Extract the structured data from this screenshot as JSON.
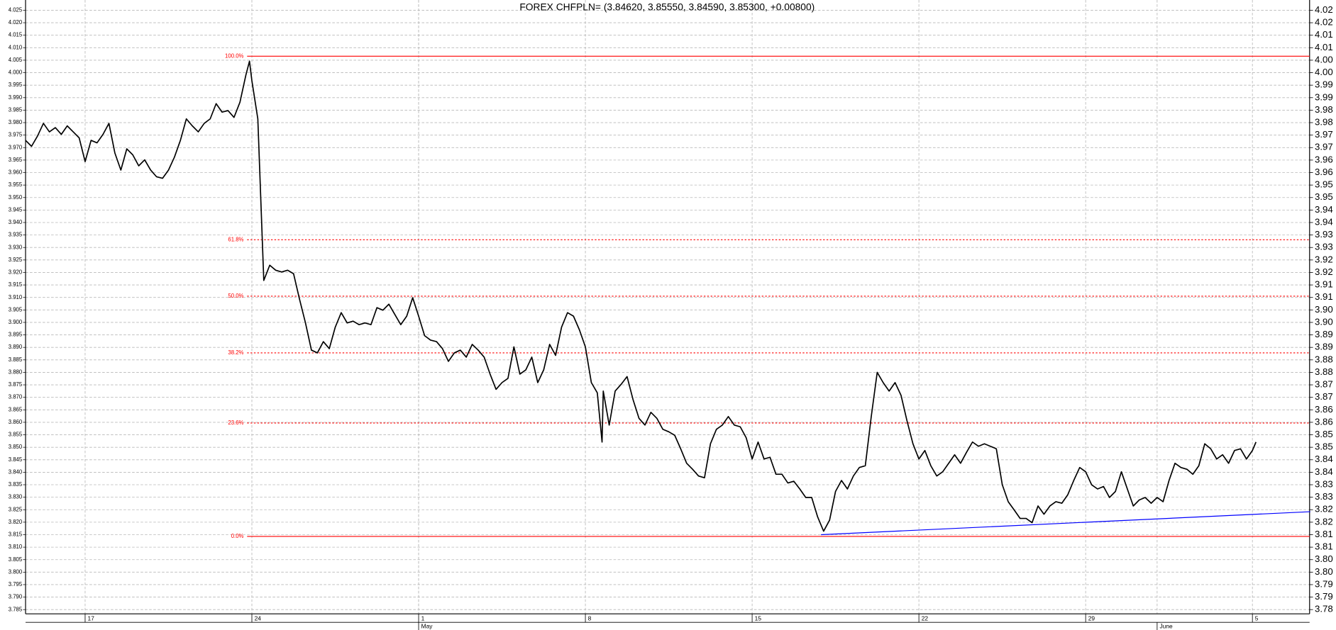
{
  "chart_data": {
    "type": "line",
    "title": "FOREX CHFPLN= (3.84620, 3.85550, 3.84590, 3.85300, +0.00800)",
    "color": "#000000",
    "grid": true,
    "xlim": [
      -2.5,
      51.4
    ],
    "ylim": [
      3.7833,
      4.0291
    ],
    "xticks": [
      {
        "value": 0,
        "label": "17"
      },
      {
        "value": 7,
        "label": "24"
      },
      {
        "value": 14,
        "label": "1"
      },
      {
        "value": 21,
        "label": "8"
      },
      {
        "value": 28,
        "label": "15"
      },
      {
        "value": 35,
        "label": "22"
      },
      {
        "value": 42,
        "label": "29"
      },
      {
        "value": 49,
        "label": "5"
      }
    ],
    "xticks_month": [
      {
        "value": 14,
        "label": "May"
      },
      {
        "value": 45,
        "label": "June"
      }
    ],
    "yticks": [
      4.025,
      {
        "value": 4.02,
        "label": "4.020"
      },
      4.015,
      {
        "value": 4.01,
        "label": "4.010"
      },
      4.005,
      {
        "value": 4.0,
        "label": "4.000"
      },
      3.995,
      {
        "value": 3.99,
        "label": "3.990"
      },
      3.985,
      {
        "value": 3.98,
        "label": "3.980"
      },
      3.975,
      {
        "value": 3.97,
        "label": "3.970"
      },
      3.965,
      {
        "value": 3.96,
        "label": "3.960"
      },
      3.955,
      {
        "value": 3.95,
        "label": "3.950"
      },
      3.945,
      {
        "value": 3.94,
        "label": "3.940"
      },
      3.935,
      {
        "value": 3.93,
        "label": "3.930"
      },
      3.925,
      {
        "value": 3.92,
        "label": "3.920"
      },
      3.915,
      {
        "value": 3.91,
        "label": "3.910"
      },
      3.905,
      {
        "value": 3.9,
        "label": "3.900"
      },
      3.895,
      {
        "value": 3.89,
        "label": "3.890"
      },
      3.885,
      {
        "value": 3.88,
        "label": "3.880"
      },
      3.875,
      {
        "value": 3.87,
        "label": "3.870"
      },
      3.865,
      {
        "value": 3.86,
        "label": "3.860"
      },
      3.855,
      {
        "value": 3.85,
        "label": "3.850"
      },
      3.845,
      {
        "value": 3.84,
        "label": "3.840"
      },
      3.835,
      {
        "value": 3.83,
        "label": "3.830"
      },
      3.825,
      {
        "value": 3.82,
        "label": "3.820"
      },
      3.815,
      {
        "value": 3.81,
        "label": "3.810"
      },
      3.805,
      {
        "value": 3.8,
        "label": "3.800"
      },
      3.795,
      {
        "value": 3.79,
        "label": "3.790"
      },
      3.785
    ],
    "y2ticks": [
      {
        "value": 4.025,
        "label": "4.02"
      },
      4.02,
      {
        "value": 4.015,
        "label": "4.01"
      },
      4.01,
      {
        "value": 4.005,
        "label": "4.00"
      },
      {
        "value": 4.0,
        "label": "4.00"
      },
      {
        "value": 3.995,
        "label": "3.99"
      },
      3.99,
      {
        "value": 3.985,
        "label": "3.98"
      },
      3.98,
      {
        "value": 3.975,
        "label": "3.97"
      },
      3.97,
      {
        "value": 3.965,
        "label": "3.96"
      },
      3.96,
      {
        "value": 3.955,
        "label": "3.95"
      },
      3.95,
      {
        "value": 3.945,
        "label": "3.94"
      },
      3.94,
      {
        "value": 3.935,
        "label": "3.93"
      },
      3.93,
      {
        "value": 3.925,
        "label": "3.92"
      },
      3.92,
      {
        "value": 3.915,
        "label": "3.91"
      },
      3.91,
      {
        "value": 3.905,
        "label": "3.90"
      },
      {
        "value": 3.9,
        "label": "3.90"
      },
      {
        "value": 3.895,
        "label": "3.89"
      },
      3.89,
      {
        "value": 3.885,
        "label": "3.88"
      },
      3.88,
      {
        "value": 3.875,
        "label": "3.87"
      },
      3.87,
      {
        "value": 3.865,
        "label": "3.86"
      },
      3.86,
      {
        "value": 3.855,
        "label": "3.85"
      },
      3.85,
      {
        "value": 3.845,
        "label": "3.84"
      },
      3.84,
      {
        "value": 3.835,
        "label": "3.83"
      },
      3.83,
      {
        "value": 3.825,
        "label": "3.82"
      },
      3.82,
      {
        "value": 3.815,
        "label": "3.81"
      },
      3.81,
      {
        "value": 3.805,
        "label": "3.80"
      },
      {
        "value": 3.8,
        "label": "3.80"
      },
      {
        "value": 3.795,
        "label": "3.79"
      },
      3.79,
      {
        "value": 3.785,
        "label": "3.78"
      }
    ],
    "x": [
      -2.5,
      -2.25,
      -2,
      -1.75,
      -1.5,
      -1.25,
      -1,
      -0.75,
      -0.5,
      -0.25,
      0,
      0.25,
      0.5,
      0.75,
      1,
      1.25,
      1.5,
      1.75,
      2,
      2.25,
      2.5,
      2.75,
      3,
      3.25,
      3.5,
      3.75,
      4,
      4.25,
      4.5,
      4.75,
      5,
      5.25,
      5.5,
      5.75,
      6,
      6.25,
      6.5,
      6.75,
      6.9,
      7,
      7.25,
      7.5,
      7.75,
      8,
      8.25,
      8.5,
      8.75,
      9,
      9.25,
      9.5,
      9.75,
      10,
      10.25,
      10.5,
      10.75,
      11,
      11.25,
      11.5,
      11.75,
      12,
      12.25,
      12.5,
      12.75,
      13,
      13.25,
      13.5,
      13.75,
      14,
      14.25,
      14.5,
      14.75,
      15,
      15.25,
      15.5,
      15.75,
      16,
      16.25,
      16.5,
      16.75,
      17,
      17.25,
      17.5,
      17.75,
      18,
      18.25,
      18.5,
      18.75,
      19,
      19.25,
      19.5,
      19.75,
      20,
      20.25,
      20.5,
      20.75,
      21,
      21.25,
      21.5,
      21.7,
      21.75,
      22,
      22.25,
      22.5,
      22.75,
      23,
      23.25,
      23.5,
      23.75,
      24,
      24.25,
      24.5,
      24.75,
      25,
      25.25,
      25.5,
      25.75,
      26,
      26.25,
      26.5,
      26.75,
      27,
      27.25,
      27.5,
      27.75,
      28,
      28.25,
      28.5,
      28.75,
      29,
      29.25,
      29.5,
      29.75,
      30,
      30.25,
      30.5,
      30.75,
      31,
      31.25,
      31.5,
      31.75,
      32,
      32.25,
      32.5,
      32.75,
      33,
      33.25,
      33.5,
      33.75,
      34,
      34.25,
      34.5,
      34.75,
      35,
      35.25,
      35.5,
      35.75,
      36,
      36.25,
      36.5,
      36.75,
      37,
      37.25,
      37.5,
      37.75,
      38,
      38.25,
      38.5,
      38.75,
      39,
      39.25,
      39.5,
      39.75,
      40,
      40.25,
      40.5,
      40.75,
      41,
      41.25,
      41.5,
      41.75,
      42,
      42.25,
      42.5,
      42.75,
      43,
      43.25,
      43.5,
      43.75,
      44,
      44.25,
      44.5,
      44.75,
      45,
      45.25,
      45.5,
      45.75,
      46,
      46.25,
      46.5,
      46.75,
      47,
      47.25,
      47.5,
      47.75,
      48,
      48.25,
      48.5,
      48.75,
      49,
      49.15
    ],
    "values": [
      3.9729,
      3.9705,
      3.9746,
      3.9797,
      3.9763,
      3.978,
      3.9753,
      3.9787,
      3.9763,
      3.9739,
      3.9644,
      3.9729,
      3.9719,
      3.9753,
      3.9797,
      3.9678,
      3.961,
      3.9695,
      3.9671,
      3.9627,
      3.9651,
      3.961,
      3.9583,
      3.9577,
      3.961,
      3.9662,
      3.9729,
      3.9815,
      3.9787,
      3.9763,
      3.9797,
      3.9815,
      3.9876,
      3.9842,
      3.9848,
      3.9821,
      3.9882,
      3.9991,
      4.0046,
      3.9968,
      3.9815,
      3.9168,
      3.9229,
      3.9209,
      3.9202,
      3.9209,
      3.9195,
      3.9093,
      3.8998,
      3.8889,
      3.8878,
      3.8923,
      3.8895,
      3.8981,
      3.9039,
      3.8998,
      3.9005,
      3.8991,
      3.8998,
      3.8991,
      3.9059,
      3.9049,
      3.9073,
      3.9032,
      3.8991,
      3.9025,
      3.9099,
      3.9025,
      3.8947,
      3.8929,
      3.8923,
      3.8895,
      3.8844,
      3.8878,
      3.8889,
      3.8861,
      3.8912,
      3.8889,
      3.8861,
      3.8793,
      3.8732,
      3.8759,
      3.8776,
      3.8902,
      3.8793,
      3.881,
      3.8861,
      3.8759,
      3.881,
      3.8912,
      3.8868,
      3.8981,
      3.9039,
      3.9025,
      3.897,
      3.8902,
      3.8759,
      3.8718,
      3.8521,
      3.8725,
      3.8589,
      3.8725,
      3.8752,
      3.8783,
      3.8691,
      3.8616,
      3.8589,
      3.864,
      3.8616,
      3.8572,
      3.8562,
      3.8548,
      3.8494,
      3.8436,
      3.8412,
      3.8385,
      3.8378,
      3.8514,
      3.8572,
      3.8589,
      3.8623,
      3.8589,
      3.8582,
      3.8538,
      3.8453,
      3.8521,
      3.8453,
      3.846,
      3.8392,
      3.8392,
      3.8357,
      3.8364,
      3.8333,
      3.8299,
      3.8299,
      3.8221,
      3.8164,
      3.8208,
      3.8323,
      3.8367,
      3.8333,
      3.8385,
      3.8419,
      3.8426,
      3.8623,
      3.88,
      3.8759,
      3.8725,
      3.8759,
      3.8708,
      3.8606,
      3.8514,
      3.8453,
      3.8487,
      3.8426,
      3.8385,
      3.8402,
      3.8436,
      3.847,
      3.8436,
      3.848,
      3.8521,
      3.8504,
      3.8514,
      3.8504,
      3.8494,
      3.835,
      3.8282,
      3.8249,
      3.8215,
      3.8215,
      3.8198,
      3.8265,
      3.8232,
      3.8265,
      3.8282,
      3.8276,
      3.831,
      3.8367,
      3.8419,
      3.8402,
      3.835,
      3.8333,
      3.8343,
      3.8299,
      3.8323,
      3.8402,
      3.8333,
      3.8265,
      3.8289,
      3.8299,
      3.8276,
      3.8299,
      3.8282,
      3.8367,
      3.8436,
      3.8419,
      3.8412,
      3.8392,
      3.8426,
      3.8514,
      3.8494,
      3.8453,
      3.847,
      3.8436,
      3.8487,
      3.8494,
      3.8453,
      3.8487,
      3.8521
    ],
    "fibonacci": {
      "color": "#ff0000",
      "x_start": 6.8,
      "levels": [
        {
          "label": "100.0%",
          "value": 4.0066,
          "dashed": false
        },
        {
          "label": "61.8%",
          "value": 3.9331,
          "dashed": true
        },
        {
          "label": "50.0%",
          "value": 3.9105,
          "dashed": true
        },
        {
          "label": "38.2%",
          "value": 3.8878,
          "dashed": true
        },
        {
          "label": "23.6%",
          "value": 3.8597,
          "dashed": true
        },
        {
          "label": "0.0%",
          "value": 3.8143,
          "dashed": false
        }
      ]
    },
    "trendline": {
      "color": "#0000ff",
      "x": [
        30.89,
        51.43
      ],
      "values": [
        3.815,
        3.8242
      ]
    }
  }
}
